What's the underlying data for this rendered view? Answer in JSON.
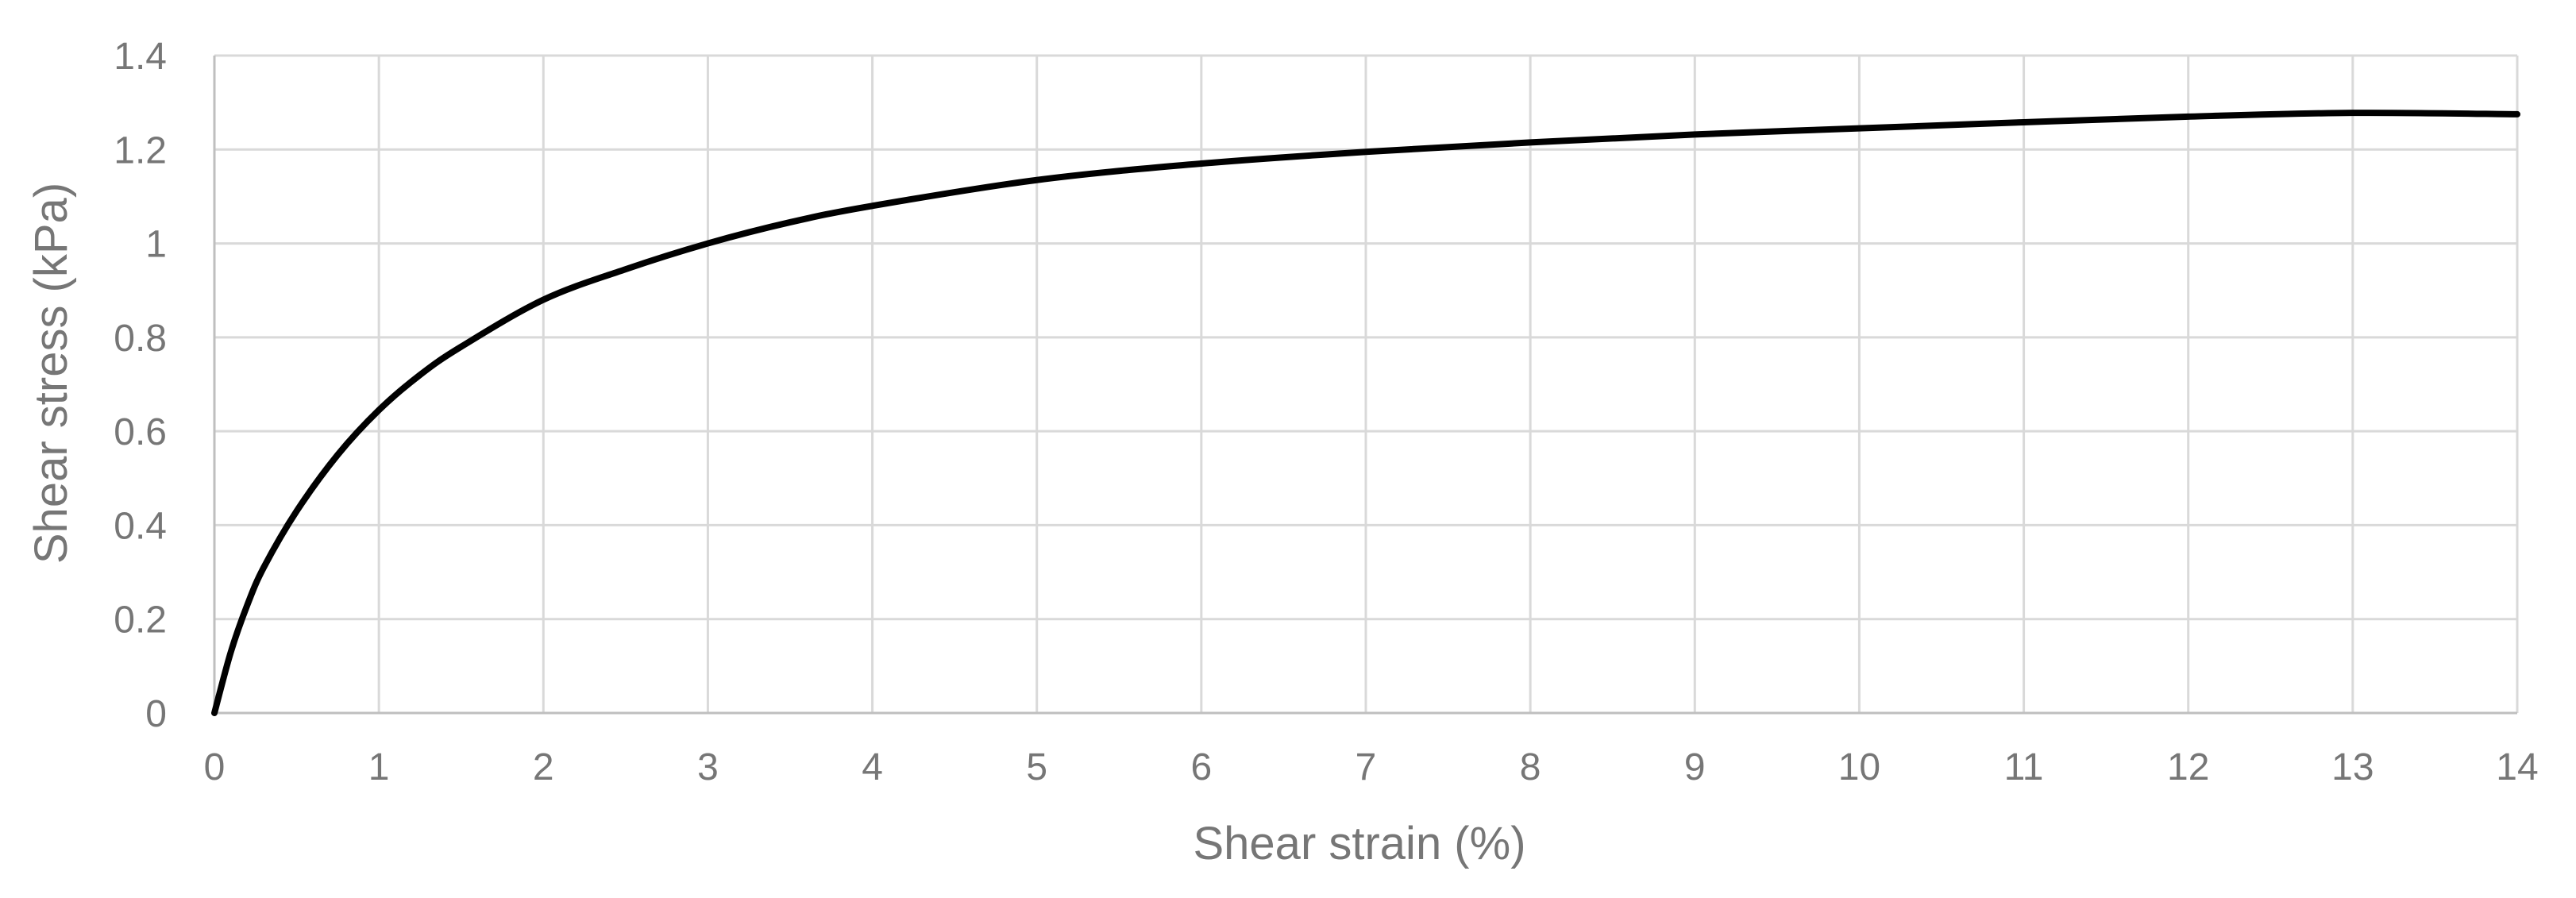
{
  "chart_data": {
    "type": "line",
    "title": "",
    "xlabel": "Shear strain (%)",
    "ylabel": "Shear stress (kPa)",
    "xlim": [
      0,
      14
    ],
    "ylim": [
      0,
      1.4
    ],
    "x_ticks": [
      "0",
      "1",
      "2",
      "3",
      "4",
      "5",
      "6",
      "7",
      "8",
      "9",
      "10",
      "11",
      "12",
      "13",
      "14"
    ],
    "y_ticks": [
      "0",
      "0.2",
      "0.4",
      "0.6",
      "0.8",
      "1",
      "1.2",
      "1.4"
    ],
    "grid": true,
    "legend": "none",
    "line_color": "#000000",
    "series": [
      {
        "x": [
          0,
          0.1,
          0.2,
          0.3,
          0.5,
          0.75,
          1,
          1.25,
          1.5,
          2,
          2.5,
          3,
          3.5,
          4,
          5,
          6,
          7,
          8,
          9,
          10,
          11,
          12,
          13,
          14
        ],
        "y": [
          0,
          0.13,
          0.23,
          0.31,
          0.43,
          0.55,
          0.645,
          0.72,
          0.78,
          0.88,
          0.945,
          1.0,
          1.045,
          1.08,
          1.135,
          1.17,
          1.195,
          1.215,
          1.232,
          1.245,
          1.258,
          1.27,
          1.278,
          1.275
        ]
      }
    ]
  }
}
